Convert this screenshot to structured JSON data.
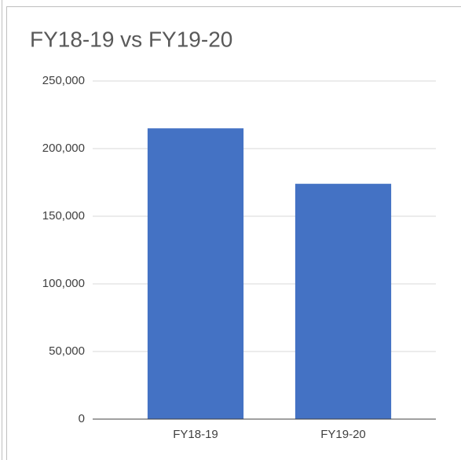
{
  "chart_data": {
    "type": "bar",
    "title": "FY18-19 vs FY19-20",
    "categories": [
      "FY18-19",
      "FY19-20"
    ],
    "values": [
      215000,
      174000
    ],
    "color": "#4472c4",
    "ylim": [
      0,
      250000
    ],
    "yticks": [
      0,
      {
        "value": 50000,
        "label": "50,000"
      },
      {
        "value": 100000,
        "label": "100,000"
      },
      {
        "value": 150000,
        "label": "150,000"
      },
      {
        "value": 200000,
        "label": "200,000"
      },
      {
        "value": 250000,
        "label": "250,000"
      }
    ],
    "grid": true
  }
}
